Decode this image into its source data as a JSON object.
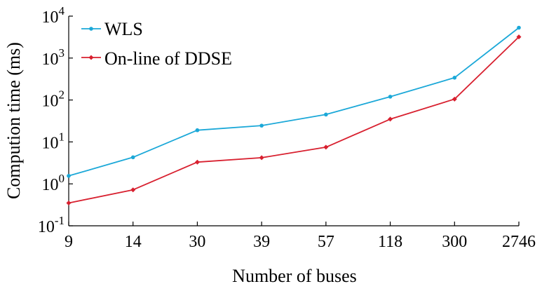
{
  "chart_data": {
    "type": "line",
    "categories": [
      "9",
      "14",
      "30",
      "39",
      "57",
      "118",
      "300",
      "2746"
    ],
    "yscale": "log",
    "ylim": [
      0.1,
      10000
    ],
    "ytick_bases": [
      "10",
      "10",
      "10",
      "10",
      "10",
      "10"
    ],
    "ytick_exponents": [
      "-1",
      "0",
      "1",
      "2",
      "3",
      "4"
    ],
    "ytick_values": [
      0.1,
      1,
      10,
      100,
      1000,
      10000
    ],
    "xlabel": "Number of buses",
    "ylabel": "Compution time (ms)",
    "grid": false,
    "legend_position": "top-left",
    "series": [
      {
        "name": "WLS",
        "color": "#1ba8d8",
        "marker": "circle",
        "values": [
          1.55,
          4.3,
          19,
          24.5,
          45,
          120,
          340,
          5300
        ]
      },
      {
        "name": "On-line of DDSE",
        "color": "#d8202f",
        "marker": "diamond",
        "values": [
          0.35,
          0.72,
          3.3,
          4.2,
          7.5,
          35,
          105,
          3200
        ]
      }
    ]
  }
}
